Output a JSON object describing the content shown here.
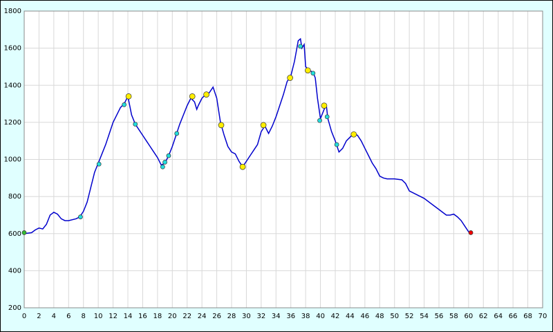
{
  "chart_data": {
    "type": "line",
    "xlim": [
      0,
      70
    ],
    "ylim": [
      200,
      1800
    ],
    "xticks": [
      0,
      2,
      4,
      6,
      8,
      10,
      12,
      14,
      16,
      18,
      20,
      22,
      24,
      26,
      28,
      30,
      32,
      34,
      36,
      38,
      40,
      42,
      44,
      46,
      48,
      50,
      52,
      54,
      56,
      58,
      60,
      62,
      64,
      66,
      68,
      70
    ],
    "yticks": [
      200,
      400,
      600,
      800,
      1000,
      1200,
      1400,
      1600,
      1800
    ],
    "grid": true,
    "series": [
      {
        "style": "line",
        "color": "#0000cc",
        "x": [
          0,
          1,
          1.5,
          2,
          2.5,
          3,
          3.5,
          4,
          4.5,
          5,
          5.5,
          6,
          7,
          7.5,
          8,
          8.5,
          9,
          9.5,
          10,
          10.5,
          11,
          11.5,
          12,
          12.5,
          13,
          13.5,
          14,
          14.5,
          15,
          15.5,
          16,
          16.5,
          17,
          17.5,
          18,
          18.5,
          19,
          19.5,
          20,
          20.5,
          21,
          21.5,
          22,
          22.5,
          23,
          23.3,
          23.5,
          24,
          24.5,
          25,
          25.5,
          26,
          26.5,
          27,
          27.5,
          28,
          28.5,
          29,
          29.5,
          30,
          30.5,
          31,
          31.5,
          32,
          32.5,
          33,
          33.5,
          34,
          34.5,
          35,
          35.5,
          36,
          36.5,
          37,
          37.3,
          37.5,
          37.8,
          38,
          38.5,
          39,
          39.3,
          39.6,
          40,
          40.5,
          40.8,
          41,
          41.5,
          42,
          42.5,
          43,
          43.5,
          44,
          44.5,
          45,
          45.5,
          46,
          46.5,
          47,
          47.5,
          48,
          48.5,
          49,
          50,
          51,
          51.5,
          52,
          53,
          54,
          55,
          56,
          57,
          57.5,
          58,
          58.5,
          59,
          59.5,
          60,
          60.3
        ],
        "values": [
          600,
          605,
          620,
          630,
          625,
          650,
          700,
          715,
          705,
          680,
          670,
          670,
          680,
          690,
          720,
          770,
          850,
          930,
          980,
          1030,
          1080,
          1140,
          1200,
          1240,
          1280,
          1300,
          1340,
          1240,
          1190,
          1160,
          1130,
          1100,
          1070,
          1040,
          1010,
          970,
          980,
          1020,
          1070,
          1130,
          1190,
          1240,
          1290,
          1330,
          1310,
          1270,
          1290,
          1330,
          1350,
          1360,
          1390,
          1330,
          1200,
          1130,
          1070,
          1040,
          1030,
          990,
          960,
          990,
          1020,
          1050,
          1080,
          1150,
          1180,
          1140,
          1180,
          1230,
          1290,
          1350,
          1420,
          1450,
          1530,
          1640,
          1650,
          1600,
          1620,
          1500,
          1480,
          1470,
          1440,
          1330,
          1220,
          1270,
          1290,
          1220,
          1150,
          1100,
          1040,
          1060,
          1100,
          1120,
          1140,
          1130,
          1100,
          1060,
          1020,
          980,
          950,
          910,
          900,
          895,
          895,
          890,
          870,
          830,
          810,
          790,
          760,
          730,
          700,
          700,
          705,
          690,
          670,
          640,
          610,
          605
        ]
      },
      {
        "style": "marker",
        "color": "#22dddd",
        "x": [
          7.6,
          10.1,
          13.5,
          15,
          18.7,
          19,
          19.5,
          20.6,
          37.3,
          39,
          39.9,
          40.9,
          42.2
        ],
        "values": [
          690,
          975,
          1295,
          1190,
          960,
          985,
          1020,
          1140,
          1610,
          1465,
          1210,
          1230,
          1080
        ]
      },
      {
        "style": "marker",
        "color": "#ffee00",
        "x": [
          14.1,
          22.7,
          24.6,
          26.6,
          29.5,
          32.3,
          35.9,
          38.3,
          40.5,
          44.5
        ],
        "values": [
          1340,
          1340,
          1350,
          1185,
          960,
          1185,
          1440,
          1480,
          1290,
          1135
        ]
      },
      {
        "style": "marker",
        "color": "#33bb33",
        "x": [
          0
        ],
        "values": [
          605
        ]
      },
      {
        "style": "marker",
        "color": "#ee0000",
        "x": [
          60.3
        ],
        "values": [
          605
        ]
      }
    ]
  }
}
